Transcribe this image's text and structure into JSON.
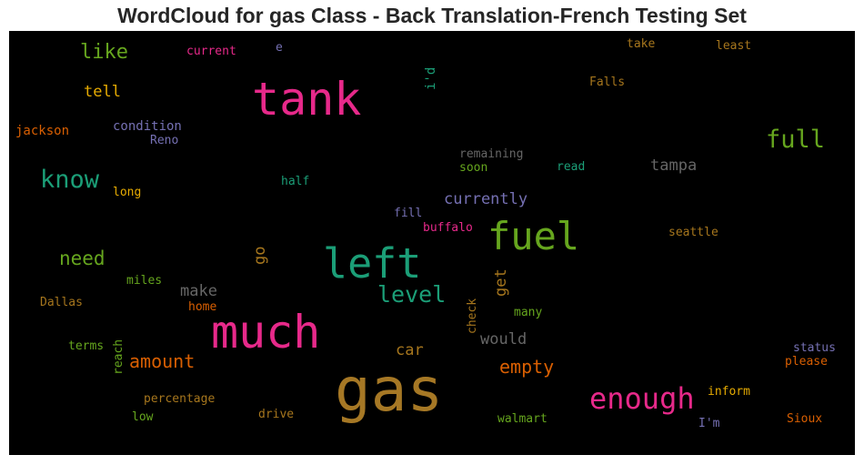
{
  "title": "WordCloud for gas Class - Back Translation-French Testing Set",
  "words": [
    {
      "text": "gas",
      "color": "#a67825"
    },
    {
      "text": "tank",
      "color": "#e7298a"
    },
    {
      "text": "much",
      "color": "#e7298a"
    },
    {
      "text": "left",
      "color": "#1b9e77"
    },
    {
      "text": "fuel",
      "color": "#66a61e"
    },
    {
      "text": "enough",
      "color": "#e7298a"
    },
    {
      "text": "full",
      "color": "#66a61e"
    },
    {
      "text": "know",
      "color": "#1b9e77"
    },
    {
      "text": "level",
      "color": "#1b9e77"
    },
    {
      "text": "like",
      "color": "#66a61e"
    },
    {
      "text": "need",
      "color": "#66a61e"
    },
    {
      "text": "amount",
      "color": "#d95f02"
    },
    {
      "text": "empty",
      "color": "#d95f02"
    },
    {
      "text": "tell",
      "color": "#e6ab02"
    },
    {
      "text": "currently",
      "color": "#7570b3"
    },
    {
      "text": "tampa",
      "color": "#666666"
    },
    {
      "text": "make",
      "color": "#666666"
    },
    {
      "text": "would",
      "color": "#666666"
    },
    {
      "text": "car",
      "color": "#a6761d"
    },
    {
      "text": "go",
      "color": "#a6761d"
    },
    {
      "text": "get",
      "color": "#a6761d"
    },
    {
      "text": "i'd",
      "color": "#1b9e77"
    },
    {
      "text": "condition",
      "color": "#7570b3"
    },
    {
      "text": "jackson",
      "color": "#d95f02"
    },
    {
      "text": "Reno",
      "color": "#7570b3"
    },
    {
      "text": "current",
      "color": "#e7298a"
    },
    {
      "text": "e",
      "color": "#7570b3"
    },
    {
      "text": "take",
      "color": "#a6761d"
    },
    {
      "text": "least",
      "color": "#a6761d"
    },
    {
      "text": "Falls",
      "color": "#a6761d"
    },
    {
      "text": "remaining",
      "color": "#666666"
    },
    {
      "text": "soon",
      "color": "#66a61e"
    },
    {
      "text": "read",
      "color": "#1b9e77"
    },
    {
      "text": "long",
      "color": "#e6ab02"
    },
    {
      "text": "half",
      "color": "#1b9e77"
    },
    {
      "text": "fill",
      "color": "#7570b3"
    },
    {
      "text": "buffalo",
      "color": "#e7298a"
    },
    {
      "text": "seattle",
      "color": "#a6761d"
    },
    {
      "text": "miles",
      "color": "#66a61e"
    },
    {
      "text": "Dallas",
      "color": "#a6761d"
    },
    {
      "text": "home",
      "color": "#d95f02"
    },
    {
      "text": "check",
      "color": "#a6761d"
    },
    {
      "text": "many",
      "color": "#66a61e"
    },
    {
      "text": "terms",
      "color": "#66a61e"
    },
    {
      "text": "reach",
      "color": "#66a61e"
    },
    {
      "text": "status",
      "color": "#7570b3"
    },
    {
      "text": "please",
      "color": "#d95f02"
    },
    {
      "text": "percentage",
      "color": "#a6761d"
    },
    {
      "text": "inform",
      "color": "#e6ab02"
    },
    {
      "text": "low",
      "color": "#66a61e"
    },
    {
      "text": "drive",
      "color": "#a6761d"
    },
    {
      "text": "walmart",
      "color": "#66a61e"
    },
    {
      "text": "I'm",
      "color": "#7570b3"
    },
    {
      "text": "Sioux",
      "color": "#d95f02"
    }
  ]
}
